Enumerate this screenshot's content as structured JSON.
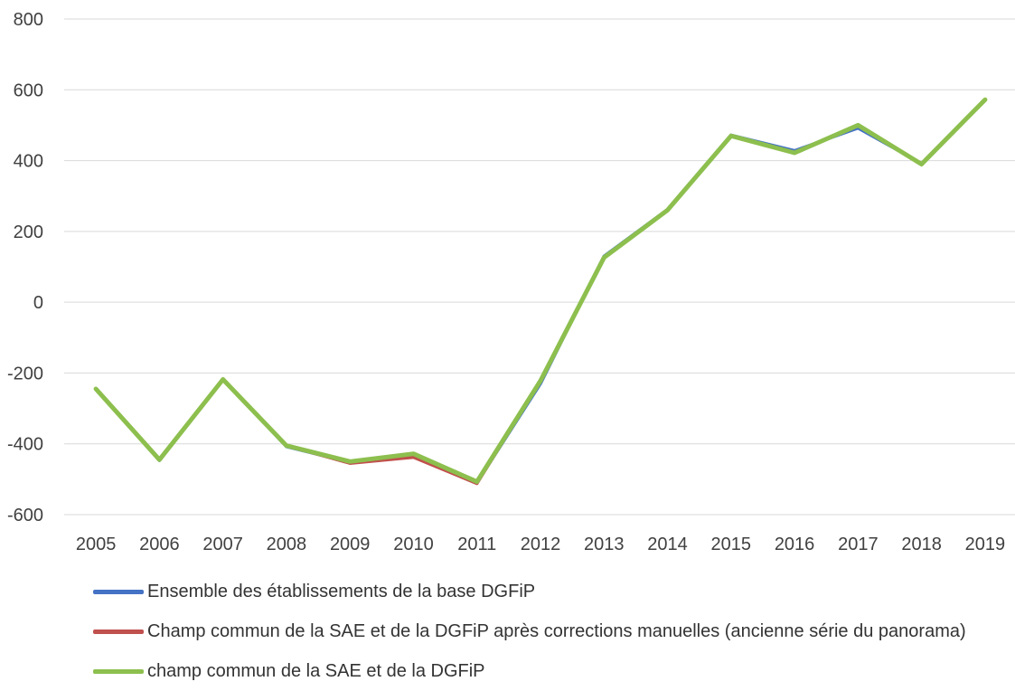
{
  "chart_data": {
    "type": "line",
    "categories": [
      "2005",
      "2006",
      "2007",
      "2008",
      "2009",
      "2010",
      "2011",
      "2012",
      "2013",
      "2014",
      "2015",
      "2016",
      "2017",
      "2018",
      "2019"
    ],
    "ylim": [
      -600,
      800
    ],
    "yticks": [
      -600,
      -400,
      -200,
      0,
      200,
      400,
      600,
      800
    ],
    "grid": true,
    "legend_position": "bottom",
    "series": [
      {
        "name": "Ensemble des établissements de la base DGFiP",
        "color": "#4472C4",
        "values": [
          -245,
          -447,
          -218,
          -408,
          -452,
          -430,
          -510,
          -230,
          130,
          262,
          472,
          428,
          492,
          392,
          572
        ]
      },
      {
        "name": "Champ commun de la SAE et de la DGFiP après corrections manuelles (ancienne série du panorama)",
        "color": "#C0504D",
        "values": [
          -245,
          -445,
          -218,
          -405,
          -455,
          -438,
          -512,
          -222,
          126,
          260,
          470,
          422,
          500,
          390,
          572
        ]
      },
      {
        "name": "champ commun de la SAE et de la DGFiP",
        "color": "#8DBF4E",
        "values": [
          -245,
          -445,
          -218,
          -405,
          -450,
          -428,
          -507,
          -222,
          126,
          260,
          470,
          422,
          500,
          390,
          572
        ]
      }
    ]
  }
}
